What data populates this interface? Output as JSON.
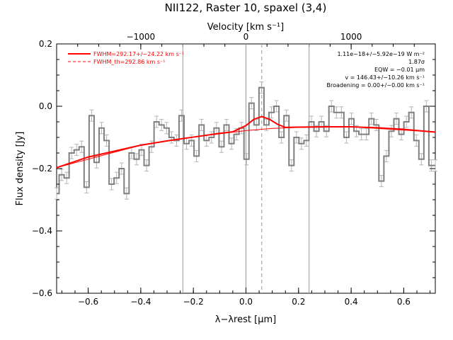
{
  "chart_data": {
    "type": "line",
    "title": "NII122, Raster 10, spaxel (3,4)",
    "xlabel": "λ−λrest [μm]",
    "ylabel": "Flux density [Jy]",
    "top_xlabel": "Velocity [km s⁻¹]",
    "xlim": [
      -0.72,
      0.72
    ],
    "ylim": [
      -0.6,
      0.2
    ],
    "top_xlim": [
      -1800,
      1800
    ],
    "x_ticks": [
      "−0.6",
      "−0.4",
      "−0.2",
      "0.0",
      "0.2",
      "0.4",
      "0.6"
    ],
    "y_ticks": [
      "−0.6",
      "−0.4",
      "−0.2",
      "0.0",
      "0.2"
    ],
    "top_ticks": [
      "−1000",
      "0",
      "1000"
    ],
    "series": [
      {
        "name": "",
        "style": "step",
        "color": "#808080",
        "x": [
          -0.72,
          -0.701,
          -0.682,
          -0.663,
          -0.644,
          -0.625,
          -0.606,
          -0.587,
          -0.568,
          -0.549,
          -0.53,
          -0.511,
          -0.492,
          -0.473,
          -0.454,
          -0.435,
          -0.416,
          -0.397,
          -0.378,
          -0.359,
          -0.34,
          -0.321,
          -0.302,
          -0.283,
          -0.264,
          -0.245,
          -0.226,
          -0.207,
          -0.188,
          -0.169,
          -0.15,
          -0.131,
          -0.112,
          -0.093,
          -0.074,
          -0.055,
          -0.036,
          -0.017,
          0.002,
          0.021,
          0.04,
          0.059,
          0.078,
          0.097,
          0.116,
          0.135,
          0.154,
          0.173,
          0.192,
          0.211,
          0.23,
          0.249,
          0.268,
          0.287,
          0.306,
          0.325,
          0.344,
          0.363,
          0.382,
          0.401,
          0.42,
          0.439,
          0.458,
          0.477,
          0.496,
          0.515,
          0.534,
          0.553,
          0.572,
          0.591,
          0.61,
          0.629,
          0.648,
          0.667,
          0.686,
          0.705,
          0.72
        ],
        "values": [
          -0.28,
          -0.22,
          -0.23,
          -0.15,
          -0.14,
          -0.13,
          -0.26,
          -0.03,
          -0.18,
          -0.07,
          -0.11,
          -0.25,
          -0.23,
          -0.2,
          -0.28,
          -0.15,
          -0.17,
          -0.14,
          -0.19,
          -0.13,
          -0.05,
          -0.06,
          -0.07,
          -0.1,
          -0.11,
          -0.03,
          -0.12,
          -0.11,
          -0.16,
          -0.06,
          -0.11,
          -0.1,
          -0.07,
          -0.13,
          -0.06,
          -0.12,
          -0.09,
          -0.07,
          -0.17,
          0.01,
          -0.06,
          0.06,
          -0.06,
          -0.02,
          0.0,
          -0.1,
          -0.03,
          -0.19,
          -0.1,
          -0.12,
          -0.11,
          -0.05,
          -0.08,
          -0.05,
          -0.08,
          0.0,
          -0.02,
          -0.02,
          -0.1,
          -0.04,
          -0.08,
          -0.09,
          -0.09,
          -0.04,
          -0.06,
          -0.24,
          -0.16,
          -0.08,
          -0.04,
          -0.09,
          -0.05,
          -0.02,
          -0.11,
          -0.17,
          0.0,
          -0.19,
          -0.19
        ]
      },
      {
        "name": "FWHM=292.17+/−24.22 km s⁻¹",
        "style": "solid",
        "color": "#ff0000",
        "x": [
          -0.72,
          -0.6,
          -0.4,
          -0.3,
          -0.2,
          -0.1,
          -0.05,
          0.0,
          0.03,
          0.06,
          0.09,
          0.12,
          0.15,
          0.2,
          0.3,
          0.4,
          0.5,
          0.6,
          0.72
        ],
        "values": [
          -0.197,
          -0.163,
          -0.125,
          -0.111,
          -0.099,
          -0.087,
          -0.082,
          -0.062,
          -0.042,
          -0.033,
          -0.042,
          -0.058,
          -0.068,
          -0.067,
          -0.066,
          -0.066,
          -0.069,
          -0.074,
          -0.083
        ]
      },
      {
        "name": "FWHM_th=292.86 km s⁻¹",
        "style": "dashed",
        "color": "#ff0000",
        "x": [
          -0.72,
          -0.4,
          -0.2,
          0.0,
          0.1,
          0.2,
          0.4,
          0.72
        ],
        "values": [
          -0.197,
          -0.125,
          -0.099,
          -0.078,
          -0.071,
          -0.068,
          -0.066,
          -0.083
        ]
      }
    ],
    "vlines": [
      {
        "x": -0.24,
        "style": "solid"
      },
      {
        "x": 0.0,
        "style": "solid"
      },
      {
        "x": 0.06,
        "style": "dashed"
      },
      {
        "x": 0.24,
        "style": "solid"
      }
    ],
    "annotations": [
      "1.11e−18+/−5.92e−19 W m⁻²",
      "1.87σ",
      "EQW = −0.01 μm",
      "v = 146.43+/−10.26 km s⁻¹",
      "Broadening = 0.00+/−0.00 km s⁻¹"
    ],
    "legend_position": "top-left"
  }
}
